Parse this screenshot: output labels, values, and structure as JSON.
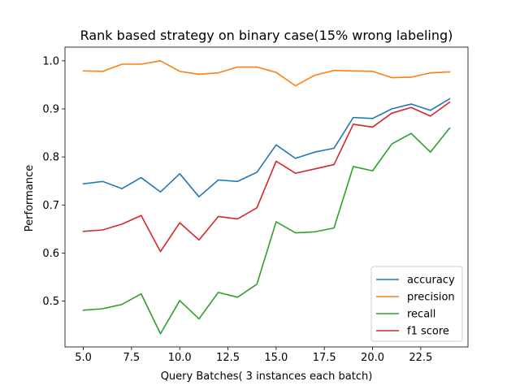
{
  "chart_data": {
    "type": "line",
    "title": "Rank based strategy on binary case(15% wrong labeling)",
    "xlabel": "Query Batches( 3 instances each batch)",
    "ylabel": "Performance",
    "xlim": [
      4.05,
      24.95
    ],
    "ylim": [
      0.4045,
      1.0285
    ],
    "xticks": [
      5.0,
      7.5,
      10.0,
      12.5,
      15.0,
      17.5,
      20.0,
      22.5
    ],
    "xtick_labels": [
      "5.0",
      "7.5",
      "10.0",
      "12.5",
      "15.0",
      "17.5",
      "20.0",
      "22.5"
    ],
    "yticks": [
      0.5,
      0.6,
      0.7,
      0.8,
      0.9,
      1.0
    ],
    "ytick_labels": [
      "0.5",
      "0.6",
      "0.7",
      "0.8",
      "0.9",
      "1.0"
    ],
    "grid": false,
    "legend_position": "lower-right",
    "x": [
      5,
      6,
      7,
      8,
      9,
      10,
      11,
      12,
      13,
      14,
      15,
      16,
      17,
      18,
      19,
      20,
      21,
      22,
      23,
      24
    ],
    "series": [
      {
        "name": "accuracy",
        "color": "#1f77b4",
        "values": [
          0.744,
          0.749,
          0.734,
          0.757,
          0.727,
          0.765,
          0.717,
          0.752,
          0.749,
          0.768,
          0.825,
          0.797,
          0.81,
          0.818,
          0.882,
          0.88,
          0.9,
          0.91,
          0.897,
          0.921
        ]
      },
      {
        "name": "precision",
        "color": "#ff7f0e",
        "values": [
          0.979,
          0.978,
          0.993,
          0.993,
          1.0,
          0.978,
          0.972,
          0.975,
          0.987,
          0.987,
          0.976,
          0.948,
          0.97,
          0.98,
          0.979,
          0.978,
          0.965,
          0.966,
          0.975,
          0.977
        ]
      },
      {
        "name": "recall",
        "color": "#2ca02c",
        "values": [
          0.481,
          0.484,
          0.493,
          0.515,
          0.432,
          0.501,
          0.463,
          0.518,
          0.508,
          0.535,
          0.665,
          0.642,
          0.644,
          0.652,
          0.78,
          0.771,
          0.827,
          0.849,
          0.81,
          0.86
        ]
      },
      {
        "name": "f1 score",
        "color": "#d62728",
        "values": [
          0.645,
          0.648,
          0.66,
          0.678,
          0.603,
          0.663,
          0.627,
          0.676,
          0.671,
          0.694,
          0.791,
          0.766,
          0.775,
          0.784,
          0.868,
          0.862,
          0.891,
          0.903,
          0.885,
          0.914
        ]
      }
    ]
  }
}
